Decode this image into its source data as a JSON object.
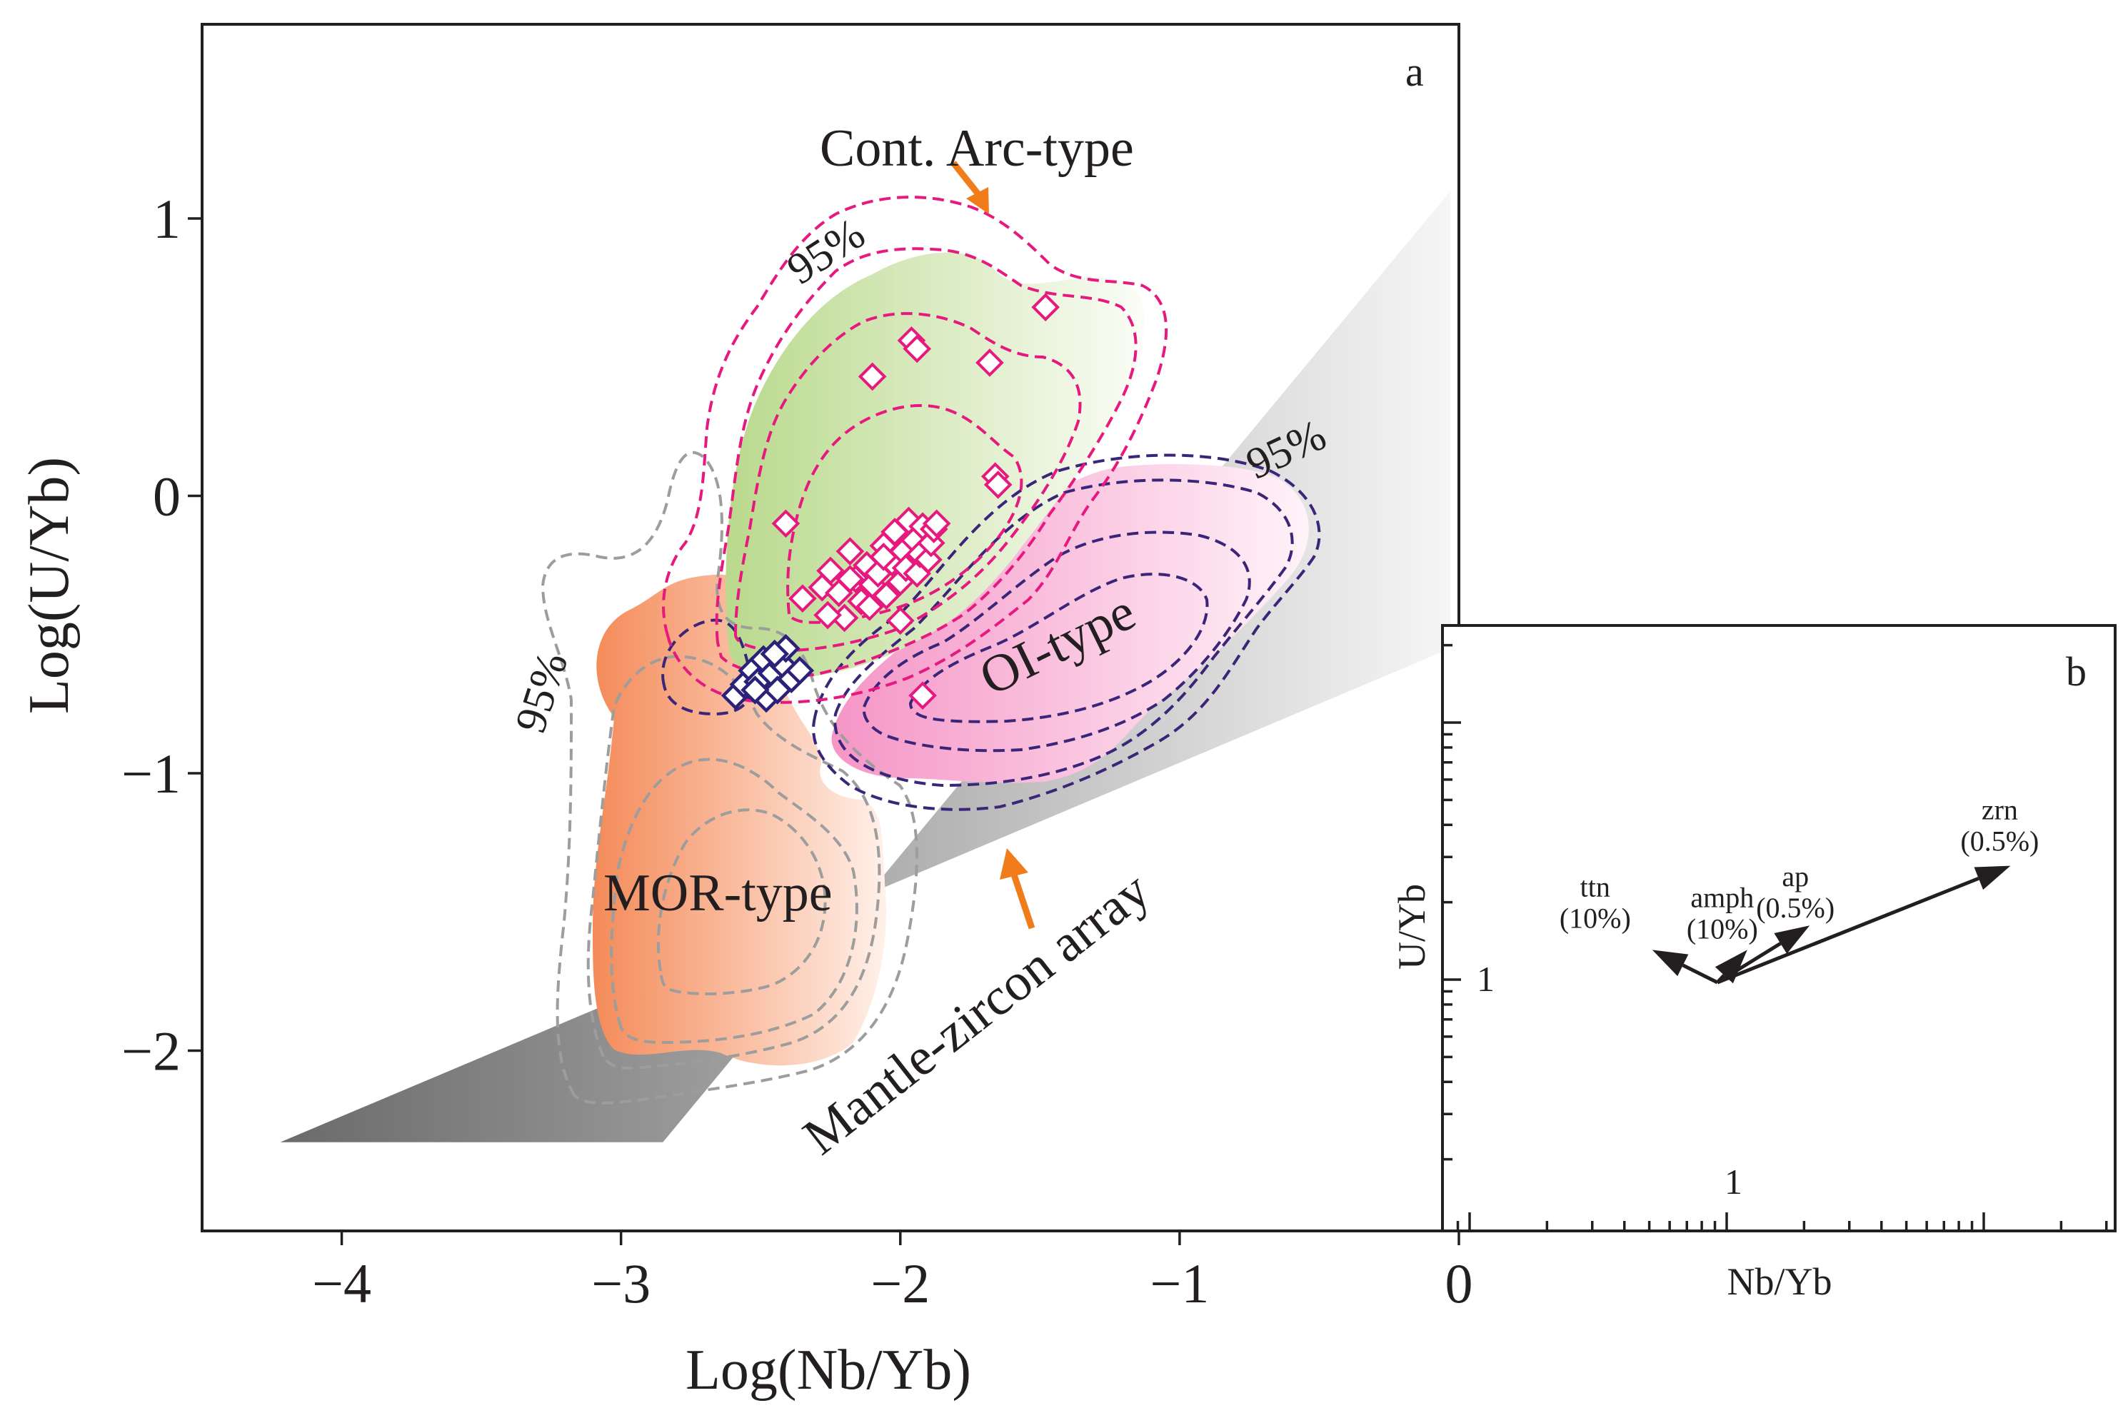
{
  "chart_data": [
    {
      "panel": "a",
      "type": "scatter",
      "title": "",
      "xlabel": "Log(Nb/Yb)",
      "ylabel": "Log(U/Yb)",
      "xlim": [
        -4.5,
        0
      ],
      "ylim": [
        -2.65,
        1.7
      ],
      "x_ticks": [
        -4,
        -3,
        -2,
        -1,
        0
      ],
      "x_tick_labels": [
        "−4",
        "−3",
        "−2",
        "−1",
        "0"
      ],
      "y_ticks": [
        -2,
        -1,
        0,
        1
      ],
      "y_tick_labels": [
        "−2",
        "−1",
        "0",
        "1"
      ],
      "grid": false,
      "fields": [
        {
          "name": "Cont. Arc-type",
          "label": "Cont. Arc-type",
          "color": "#e6197e",
          "fill": "#c9e3a8"
        },
        {
          "name": "OI-type",
          "label": "OI-type",
          "color": "#3a2579",
          "fill": "#f7b6d8"
        },
        {
          "name": "MOR-type",
          "label": "MOR-type",
          "color": "#9d9d9d",
          "fill": "#f59a6b"
        },
        {
          "name": "Mantle-zircon array",
          "label": "Mantle-zircon array",
          "color": "#6e6e6e"
        }
      ],
      "contour_labels": [
        "95%",
        "95%",
        "95%"
      ],
      "mantle_array_vertices": [
        [
          -4.22,
          -2.33
        ],
        [
          -2.85,
          -2.33
        ],
        [
          -0.03,
          1.1
        ],
        [
          -0.03,
          -0.55
        ]
      ],
      "series": [
        {
          "name": "pink diamonds",
          "color": "#e6197e",
          "points": [
            [
              -1.48,
              0.68
            ],
            [
              -2.1,
              0.43
            ],
            [
              -1.96,
              0.56
            ],
            [
              -1.94,
              0.53
            ],
            [
              -1.68,
              0.48
            ],
            [
              -1.66,
              0.07
            ],
            [
              -1.65,
              0.04
            ],
            [
              -2.41,
              -0.1
            ],
            [
              -2.35,
              -0.37
            ],
            [
              -2.28,
              -0.33
            ],
            [
              -2.25,
              -0.27
            ],
            [
              -2.22,
              -0.35
            ],
            [
              -2.2,
              -0.44
            ],
            [
              -2.18,
              -0.2
            ],
            [
              -2.16,
              -0.3
            ],
            [
              -2.14,
              -0.38
            ],
            [
              -2.12,
              -0.25
            ],
            [
              -2.1,
              -0.32
            ],
            [
              -2.08,
              -0.28
            ],
            [
              -2.06,
              -0.18
            ],
            [
              -2.05,
              -0.36
            ],
            [
              -2.03,
              -0.24
            ],
            [
              -2.02,
              -0.13
            ],
            [
              -2.0,
              -0.31
            ],
            [
              -1.99,
              -0.2
            ],
            [
              -1.98,
              -0.26
            ],
            [
              -1.97,
              -0.09
            ],
            [
              -1.95,
              -0.16
            ],
            [
              -1.94,
              -0.28
            ],
            [
              -1.93,
              -0.21
            ],
            [
              -1.92,
              -0.11
            ],
            [
              -1.9,
              -0.23
            ],
            [
              -1.89,
              -0.17
            ],
            [
              -1.88,
              -0.12
            ],
            [
              -1.87,
              -0.1
            ],
            [
              -2.18,
              -0.3
            ],
            [
              -2.11,
              -0.4
            ],
            [
              -2.06,
              -0.22
            ],
            [
              -2.0,
              -0.45
            ],
            [
              -2.26,
              -0.43
            ],
            [
              -1.92,
              -0.72
            ]
          ]
        },
        {
          "name": "navy diamonds",
          "color": "#2b2178",
          "points": [
            [
              -2.59,
              -0.72
            ],
            [
              -2.56,
              -0.68
            ],
            [
              -2.53,
              -0.63
            ],
            [
              -2.51,
              -0.67
            ],
            [
              -2.49,
              -0.59
            ],
            [
              -2.48,
              -0.73
            ],
            [
              -2.46,
              -0.64
            ],
            [
              -2.44,
              -0.7
            ],
            [
              -2.42,
              -0.61
            ],
            [
              -2.41,
              -0.55
            ],
            [
              -2.39,
              -0.66
            ],
            [
              -2.36,
              -0.63
            ],
            [
              -2.52,
              -0.7
            ],
            [
              -2.45,
              -0.57
            ]
          ]
        }
      ],
      "panel_label": "a"
    },
    {
      "panel": "b",
      "type": "vector",
      "xlabel": "Nb/Yb",
      "ylabel": "U/Yb",
      "x_tick_label": "1",
      "y_tick_label": "1",
      "scale": "log",
      "vectors": [
        {
          "mineral": "ttn",
          "fraction": "(10%)",
          "dx": -0.24,
          "dy": 0.12
        },
        {
          "mineral": "amph",
          "fraction": "(10%)",
          "dx": 0.11,
          "dy": 0.12
        },
        {
          "mineral": "ap",
          "fraction": "(0.5%)",
          "dx": 0.34,
          "dy": 0.21
        },
        {
          "mineral": "zrn",
          "fraction": "(0.5%)",
          "dx": 1.08,
          "dy": 0.43
        }
      ],
      "panel_label": "b"
    }
  ],
  "text": {
    "arc_label": "Cont. Arc-type",
    "oi_label": "OI-type",
    "mor_label": "MOR-type",
    "mantle_label": "Mantle-zircon array",
    "pct_arc": "95%",
    "pct_oi": "95%",
    "pct_mor": "95%",
    "panel_a": "a",
    "panel_b": "b",
    "a_xlabel": "Log(Nb/Yb)",
    "a_ylabel": "Log(U/Yb)",
    "b_xlabel": "Nb/Yb",
    "b_ylabel": "U/Yb",
    "b_xtick": "1",
    "b_ytick": "1"
  },
  "colors": {
    "arrow_orange": "#f07d1a",
    "arc_contour": "#e6197e",
    "oi_contour": "#3a2579",
    "mor_contour": "#9d9d9d"
  }
}
